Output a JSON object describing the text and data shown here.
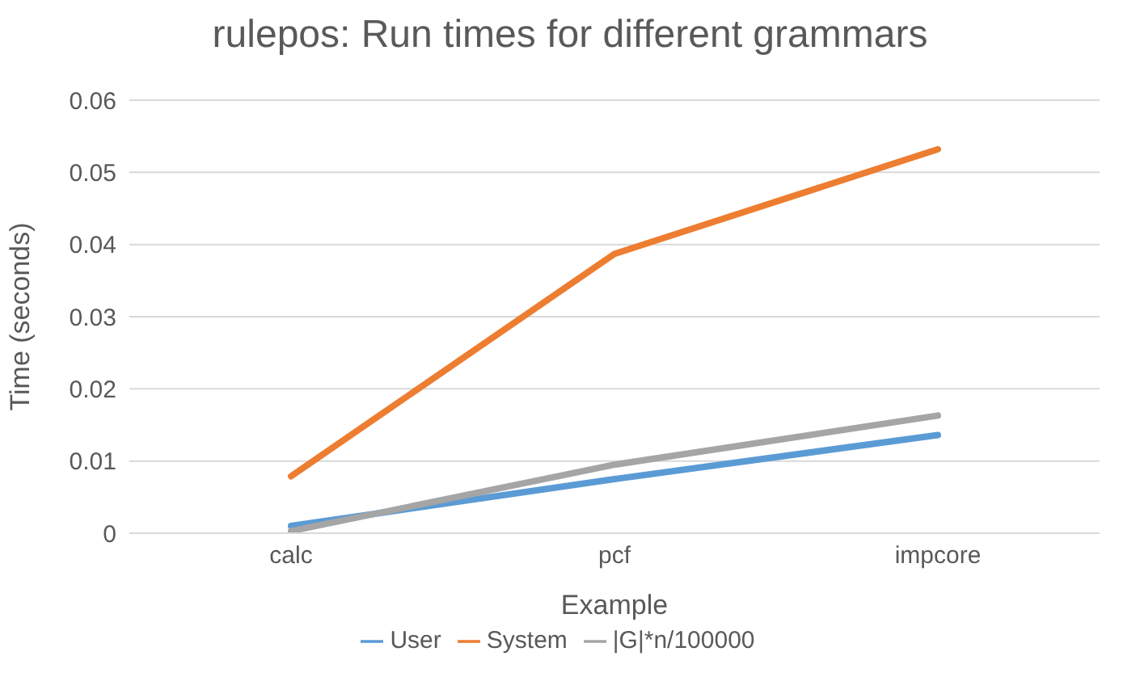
{
  "chart_data": {
    "type": "line",
    "title": "rulepos: Run times for different grammars",
    "xlabel": "Example",
    "ylabel": "Time (seconds)",
    "categories": [
      "calc",
      "pcf",
      "impcore"
    ],
    "series": [
      {
        "name": "User",
        "color": "#5b9bd5",
        "values": [
          0.001,
          0.0075,
          0.0136
        ]
      },
      {
        "name": "System",
        "color": "#ed7d31",
        "values": [
          0.0079,
          0.0387,
          0.0532
        ]
      },
      {
        "name": "|G|*n/100000",
        "color": "#a5a5a5",
        "values": [
          0.0003,
          0.0095,
          0.0163
        ]
      }
    ],
    "ylim": [
      0,
      0.06
    ],
    "yticks": [
      0,
      0.01,
      0.02,
      0.03,
      0.04,
      0.05,
      0.06
    ],
    "grid": "y",
    "legend": "bottom",
    "marker": "none",
    "line_style": "solid"
  }
}
